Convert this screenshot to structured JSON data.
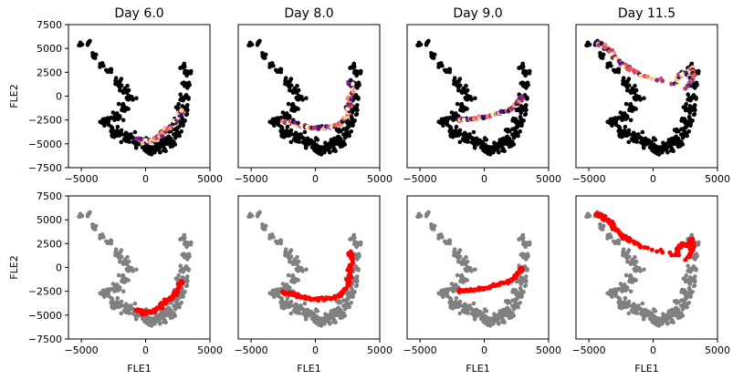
{
  "chart_data": {
    "type": "scatter",
    "layout": "2x4 grid",
    "columns": [
      {
        "title": "Day 6.0"
      },
      {
        "title": "Day 8.0"
      },
      {
        "title": "Day 9.0"
      },
      {
        "title": "Day 11.5"
      }
    ],
    "xlabel": "FLE1",
    "ylabel": "FLE2",
    "xlim": [
      -6000,
      5000
    ],
    "ylim": [
      -7500,
      7500
    ],
    "xticks": [
      -5000,
      0,
      5000
    ],
    "yticks": [
      -7500,
      -5000,
      -2500,
      0,
      2500,
      5000,
      7500
    ],
    "xtick_labels": [
      "−5000",
      "0",
      "5000"
    ],
    "ytick_labels": [
      "−7500",
      "−5000",
      "−2500",
      "0",
      "2500",
      "5000",
      "7500"
    ],
    "grid": false,
    "top_row": {
      "description": "cells colored by density per day",
      "background_color": "#000000"
    },
    "bottom_row": {
      "background_color": "#808080",
      "highlight_color": "#ff0000"
    },
    "background_cloud": {
      "path": [
        [
          -5100,
          5400
        ],
        [
          -4400,
          5600
        ],
        [
          -4000,
          4200
        ],
        [
          -3400,
          3300
        ],
        [
          -2800,
          2600
        ],
        [
          -2200,
          1500
        ],
        [
          -1600,
          700
        ],
        [
          -1200,
          -200
        ],
        [
          -1700,
          -1200
        ],
        [
          -2200,
          -2300
        ],
        [
          -3200,
          -2600
        ],
        [
          -2400,
          -3600
        ],
        [
          -1400,
          -4300
        ],
        [
          -400,
          -4900
        ],
        [
          400,
          -5600
        ],
        [
          1100,
          -5300
        ],
        [
          1800,
          -4700
        ],
        [
          2300,
          -3800
        ],
        [
          2700,
          -2700
        ],
        [
          2900,
          -1400
        ],
        [
          3000,
          -200
        ],
        [
          3100,
          1200
        ],
        [
          3200,
          2400
        ],
        [
          2900,
          3100
        ]
      ],
      "spread": [
        300,
        300,
        350,
        350,
        350,
        450,
        450,
        450,
        500,
        600,
        500,
        600,
        700,
        800,
        700,
        700,
        700,
        650,
        600,
        550,
        500,
        450,
        400,
        350
      ],
      "counts": [
        8,
        8,
        8,
        8,
        10,
        12,
        12,
        12,
        14,
        18,
        16,
        22,
        28,
        34,
        30,
        30,
        28,
        24,
        22,
        20,
        18,
        16,
        14,
        10
      ]
    },
    "highlights": [
      {
        "day": "Day 6.0",
        "path": [
          [
            -800,
            -4400
          ],
          [
            -200,
            -4800
          ],
          [
            400,
            -4700
          ],
          [
            1000,
            -4200
          ],
          [
            1600,
            -3600
          ],
          [
            2100,
            -3000
          ],
          [
            2600,
            -2200
          ],
          [
            2800,
            -1400
          ]
        ],
        "spread": 300
      },
      {
        "day": "Day 8.0",
        "path": [
          [
            -2600,
            -2600
          ],
          [
            -1800,
            -2800
          ],
          [
            -1000,
            -3100
          ],
          [
            -200,
            -3300
          ],
          [
            600,
            -3300
          ],
          [
            1300,
            -3200
          ],
          [
            2000,
            -2900
          ],
          [
            2500,
            -2000
          ],
          [
            2700,
            -700
          ],
          [
            2800,
            600
          ],
          [
            2700,
            1800
          ]
        ],
        "spread": 250
      },
      {
        "day": "Day 9.0",
        "path": [
          [
            -2100,
            -2500
          ],
          [
            -1300,
            -2400
          ],
          [
            -500,
            -2300
          ],
          [
            200,
            -2200
          ],
          [
            900,
            -1900
          ],
          [
            1600,
            -1600
          ],
          [
            2200,
            -1200
          ],
          [
            2700,
            -600
          ],
          [
            3100,
            100
          ]
        ],
        "spread": 220
      },
      {
        "day": "Day 11.5",
        "path": [
          [
            -4400,
            5600
          ],
          [
            -3800,
            5200
          ],
          [
            -3300,
            4700
          ],
          [
            -2800,
            3800
          ],
          [
            -2300,
            3200
          ],
          [
            -1700,
            2800
          ],
          [
            -1000,
            2200
          ],
          [
            1800,
            1300
          ],
          [
            2000,
            2000
          ],
          [
            2300,
            2500
          ],
          [
            2700,
            2300
          ],
          [
            3000,
            3000
          ],
          [
            3100,
            1700
          ],
          [
            2500,
            800
          ]
        ],
        "spread": 250
      }
    ],
    "density_colors": [
      "#1d1147",
      "#51127c",
      "#832681",
      "#b73779",
      "#e75263",
      "#fc8961",
      "#fcc98d",
      "#fcfdbf"
    ]
  }
}
